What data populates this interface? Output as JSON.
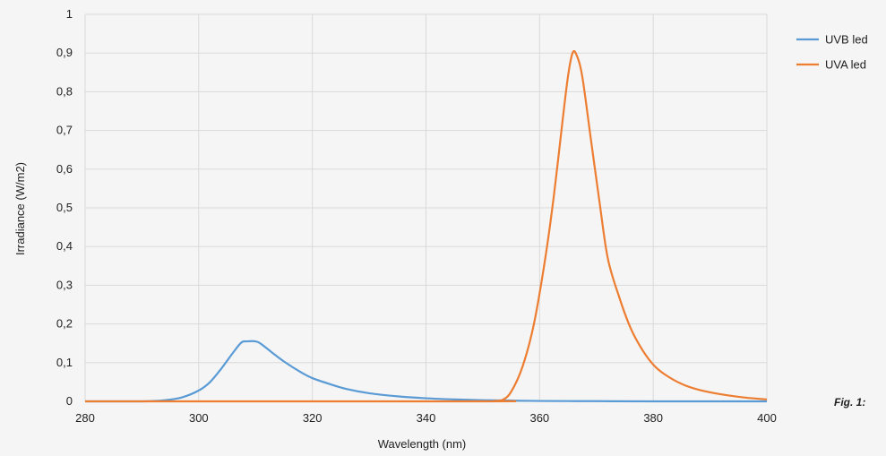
{
  "figure_caption": "Fig. 1:",
  "chart_data": {
    "type": "line",
    "title": "",
    "xlabel": "Wavelength (nm)",
    "ylabel": "Irradiance (W/m2)",
    "xlim": [
      280,
      400
    ],
    "ylim": [
      0,
      1
    ],
    "x_ticks": [
      280,
      300,
      320,
      340,
      360,
      380,
      400
    ],
    "y_ticks": [
      "0",
      "0,1",
      "0,2",
      "0,3",
      "0,4",
      "0,5",
      "0,6",
      "0,7",
      "0,8",
      "0,9",
      "1"
    ],
    "grid": true,
    "legend_position": "right",
    "series": [
      {
        "name": "UVB led",
        "color": "#5b9bd5",
        "points": [
          [
            280,
            0
          ],
          [
            290,
            0
          ],
          [
            294,
            0.003
          ],
          [
            297,
            0.01
          ],
          [
            300,
            0.028
          ],
          [
            302,
            0.05
          ],
          [
            304,
            0.085
          ],
          [
            306,
            0.125
          ],
          [
            307.5,
            0.152
          ],
          [
            308.5,
            0.155
          ],
          [
            310,
            0.155
          ],
          [
            311,
            0.148
          ],
          [
            313,
            0.125
          ],
          [
            315,
            0.103
          ],
          [
            318,
            0.075
          ],
          [
            320,
            0.06
          ],
          [
            323,
            0.045
          ],
          [
            326,
            0.032
          ],
          [
            330,
            0.021
          ],
          [
            335,
            0.013
          ],
          [
            340,
            0.008
          ],
          [
            345,
            0.005
          ],
          [
            350,
            0.003
          ],
          [
            355,
            0.002
          ],
          [
            360,
            0.001
          ],
          [
            370,
            0.0005
          ],
          [
            380,
            0
          ],
          [
            400,
            0
          ]
        ]
      },
      {
        "name": "UVA led",
        "color": "#ed7d31",
        "points": [
          [
            280,
            0
          ],
          [
            350,
            0
          ],
          [
            352,
            0.001
          ],
          [
            353.5,
            0.004
          ],
          [
            355,
            0.025
          ],
          [
            357,
            0.09
          ],
          [
            359,
            0.2
          ],
          [
            361,
            0.37
          ],
          [
            362.5,
            0.53
          ],
          [
            364,
            0.72
          ],
          [
            365,
            0.84
          ],
          [
            365.8,
            0.9
          ],
          [
            366.5,
            0.895
          ],
          [
            367.5,
            0.84
          ],
          [
            369,
            0.68
          ],
          [
            370.5,
            0.52
          ],
          [
            372,
            0.37
          ],
          [
            374,
            0.27
          ],
          [
            376,
            0.19
          ],
          [
            378,
            0.135
          ],
          [
            380,
            0.095
          ],
          [
            382,
            0.07
          ],
          [
            385,
            0.045
          ],
          [
            388,
            0.03
          ],
          [
            392,
            0.018
          ],
          [
            396,
            0.01
          ],
          [
            400,
            0.005
          ]
        ]
      }
    ]
  }
}
